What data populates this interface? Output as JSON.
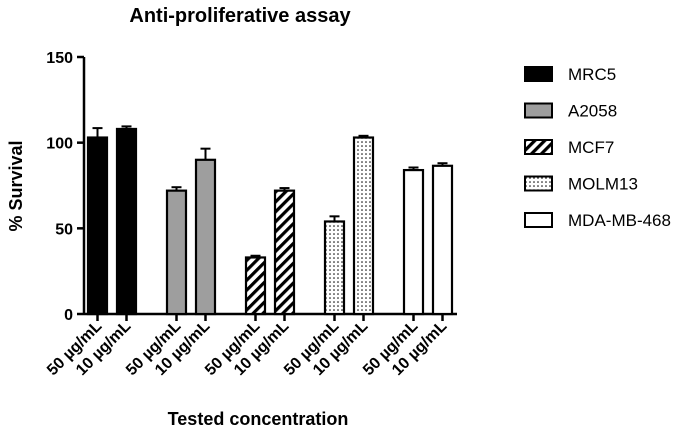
{
  "chart_data": {
    "type": "bar",
    "title": "Anti-proliferative assay",
    "xlabel": "Tested concentration",
    "ylabel": "% Survival",
    "ylim": [
      0,
      150
    ],
    "yticks": [
      "0",
      "50",
      "100",
      "150"
    ],
    "grid": false,
    "legend_position": "right",
    "series": [
      {
        "name": "MRC5",
        "fill": "solid-black",
        "categories": [
          "50 µg/mL",
          "10 µg/mL"
        ],
        "values": [
          103,
          108
        ],
        "errors": [
          5.5,
          1.5
        ]
      },
      {
        "name": "A2058",
        "fill": "solid-gray",
        "categories": [
          "50 µg/mL",
          "10 µg/mL"
        ],
        "values": [
          72,
          90
        ],
        "errors": [
          2,
          6.5
        ]
      },
      {
        "name": "MCF7",
        "fill": "diagonal-stripes",
        "categories": [
          "50 µg/mL",
          "10 µg/mL"
        ],
        "values": [
          33,
          72
        ],
        "errors": [
          1,
          1.5
        ]
      },
      {
        "name": "MOLM13",
        "fill": "dots",
        "categories": [
          "50 µg/mL",
          "10 µg/mL"
        ],
        "values": [
          54,
          103
        ],
        "errors": [
          3,
          1
        ]
      },
      {
        "name": "MDA-MB-468",
        "fill": "white",
        "categories": [
          "50 µg/mL",
          "10 µg/mL"
        ],
        "values": [
          84,
          86.5
        ],
        "errors": [
          1.5,
          1.5
        ]
      }
    ],
    "colors": {
      "black": "#000000",
      "gray": "#9e9e9e",
      "white": "#ffffff"
    }
  }
}
